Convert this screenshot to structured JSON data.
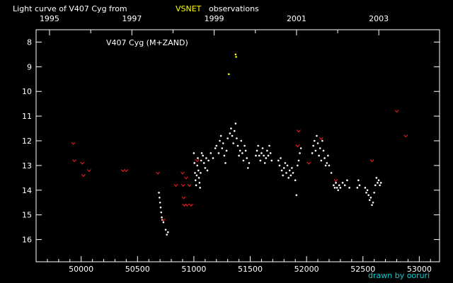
{
  "chart_data": {
    "type": "scatter",
    "title_prefix": "Light curve of V407 Cyg from",
    "title_highlight": "VSNET",
    "title_suffix": "observations",
    "annotation": "V407 Cyg (M+ZAND)",
    "credit": "drawn by ooruri",
    "xlim": [
      49600,
      53180
    ],
    "ylim": [
      16.9,
      7.5
    ],
    "y_inverted": true,
    "grid": false,
    "x_ticks": [
      50000,
      50500,
      51000,
      51500,
      52000,
      52500,
      53000
    ],
    "x_tick_labels": [
      "50000",
      "50500",
      "51000",
      "51500",
      "52000",
      "52500",
      "53000"
    ],
    "y_ticks": [
      8,
      9,
      10,
      11,
      12,
      13,
      14,
      15,
      16
    ],
    "y_tick_labels": [
      "8",
      "9",
      "10",
      "11",
      "12",
      "13",
      "14",
      "15",
      "16"
    ],
    "top_axis_years": [
      {
        "label": "1995",
        "jd": 49719
      },
      {
        "label": "1997",
        "jd": 50450
      },
      {
        "label": "1999",
        "jd": 51180
      },
      {
        "label": "2001",
        "jd": 51911
      },
      {
        "label": "2003",
        "jd": 52641
      }
    ],
    "colors": {
      "background": "#000000",
      "axes": "#ffffff",
      "title": "#ffffff",
      "highlight": "#ffff00",
      "credit": "#00d0d0",
      "observation": "#ffffff",
      "upper_limit": "#ff2020",
      "peak": "#ffff00"
    },
    "series": [
      {
        "marker": "dot",
        "color": "#ffffff",
        "points": [
          [
            50690,
            14.1
          ],
          [
            50695,
            14.3
          ],
          [
            50700,
            14.5
          ],
          [
            50705,
            14.7
          ],
          [
            50710,
            14.9
          ],
          [
            50715,
            15.1
          ],
          [
            50720,
            15.2
          ],
          [
            50730,
            15.3
          ],
          [
            50750,
            15.6
          ],
          [
            50760,
            15.8
          ],
          [
            50770,
            15.7
          ],
          [
            51000,
            12.5
          ],
          [
            51005,
            12.9
          ],
          [
            51010,
            13.3
          ],
          [
            51015,
            13.6
          ],
          [
            51020,
            13.8
          ],
          [
            51025,
            13.4
          ],
          [
            51030,
            13.0
          ],
          [
            51035,
            12.7
          ],
          [
            51040,
            13.2
          ],
          [
            51045,
            13.5
          ],
          [
            51050,
            13.7
          ],
          [
            51055,
            13.9
          ],
          [
            51060,
            13.3
          ],
          [
            51065,
            12.8
          ],
          [
            51070,
            12.5
          ],
          [
            51080,
            12.6
          ],
          [
            51090,
            12.9
          ],
          [
            51100,
            13.1
          ],
          [
            51110,
            12.7
          ],
          [
            51120,
            13.2
          ],
          [
            51130,
            12.8
          ],
          [
            51150,
            12.5
          ],
          [
            51170,
            12.7
          ],
          [
            51190,
            12.3
          ],
          [
            51200,
            12.2
          ],
          [
            51220,
            12.5
          ],
          [
            51230,
            12.0
          ],
          [
            51240,
            11.8
          ],
          [
            51250,
            12.3
          ],
          [
            51260,
            12.1
          ],
          [
            51270,
            12.6
          ],
          [
            51280,
            12.9
          ],
          [
            51290,
            12.4
          ],
          [
            51300,
            11.9
          ],
          [
            51320,
            11.7
          ],
          [
            51330,
            11.5
          ],
          [
            51340,
            11.8
          ],
          [
            51350,
            12.1
          ],
          [
            51360,
            11.6
          ],
          [
            51370,
            11.3
          ],
          [
            51380,
            11.9
          ],
          [
            51390,
            12.2
          ],
          [
            51400,
            12.6
          ],
          [
            51410,
            12.4
          ],
          [
            51420,
            12.0
          ],
          [
            51430,
            12.5
          ],
          [
            51440,
            12.8
          ],
          [
            51450,
            12.2
          ],
          [
            51460,
            12.4
          ],
          [
            51470,
            12.7
          ],
          [
            51480,
            13.1
          ],
          [
            51490,
            12.9
          ],
          [
            51550,
            12.6
          ],
          [
            51560,
            12.4
          ],
          [
            51570,
            12.2
          ],
          [
            51580,
            12.6
          ],
          [
            51590,
            12.8
          ],
          [
            51600,
            12.5
          ],
          [
            51610,
            12.3
          ],
          [
            51620,
            12.6
          ],
          [
            51630,
            12.9
          ],
          [
            51640,
            12.7
          ],
          [
            51650,
            12.4
          ],
          [
            51660,
            12.6
          ],
          [
            51670,
            12.2
          ],
          [
            51680,
            12.5
          ],
          [
            51690,
            12.8
          ],
          [
            51750,
            12.8
          ],
          [
            51760,
            13.0
          ],
          [
            51770,
            12.7
          ],
          [
            51780,
            13.2
          ],
          [
            51790,
            13.4
          ],
          [
            51800,
            13.1
          ],
          [
            51810,
            12.9
          ],
          [
            51820,
            13.3
          ],
          [
            51830,
            13.0
          ],
          [
            51840,
            13.5
          ],
          [
            51850,
            13.2
          ],
          [
            51860,
            13.4
          ],
          [
            51870,
            13.1
          ],
          [
            51880,
            13.3
          ],
          [
            51900,
            13.6
          ],
          [
            51910,
            14.2
          ],
          [
            51920,
            13.0
          ],
          [
            51930,
            12.8
          ],
          [
            51940,
            12.5
          ],
          [
            51950,
            12.3
          ],
          [
            52050,
            12.5
          ],
          [
            52060,
            12.2
          ],
          [
            52070,
            12.0
          ],
          [
            52080,
            12.4
          ],
          [
            52090,
            11.8
          ],
          [
            52100,
            12.1
          ],
          [
            52110,
            12.6
          ],
          [
            52120,
            12.3
          ],
          [
            52130,
            12.8
          ],
          [
            52140,
            12.0
          ],
          [
            52150,
            12.4
          ],
          [
            52160,
            12.7
          ],
          [
            52170,
            13.0
          ],
          [
            52180,
            12.9
          ],
          [
            52190,
            12.6
          ],
          [
            52200,
            13.0
          ],
          [
            52220,
            13.3
          ],
          [
            52240,
            13.8
          ],
          [
            52250,
            13.9
          ],
          [
            52260,
            13.7
          ],
          [
            52270,
            13.9
          ],
          [
            52280,
            14.0
          ],
          [
            52290,
            13.8
          ],
          [
            52300,
            13.9
          ],
          [
            52320,
            13.7
          ],
          [
            52340,
            13.8
          ],
          [
            52360,
            13.6
          ],
          [
            52380,
            13.9
          ],
          [
            52450,
            13.9
          ],
          [
            52460,
            13.6
          ],
          [
            52470,
            13.8
          ],
          [
            52520,
            13.9
          ],
          [
            52530,
            14.1
          ],
          [
            52540,
            14.0
          ],
          [
            52550,
            14.2
          ],
          [
            52560,
            14.4
          ],
          [
            52570,
            14.3
          ],
          [
            52580,
            14.6
          ],
          [
            52590,
            14.5
          ],
          [
            52600,
            14.1
          ],
          [
            52610,
            13.8
          ],
          [
            52620,
            13.5
          ],
          [
            52630,
            13.7
          ],
          [
            52640,
            13.6
          ],
          [
            52650,
            13.8
          ],
          [
            52660,
            13.7
          ]
        ]
      },
      {
        "marker": "dot",
        "color": "#ffff00",
        "points": [
          [
            51310,
            9.3
          ],
          [
            51370,
            8.5
          ],
          [
            51375,
            8.6
          ]
        ]
      },
      {
        "marker": "chevron",
        "color": "#ff2020",
        "points": [
          [
            49930,
            12.1
          ],
          [
            49940,
            12.8
          ],
          [
            50010,
            12.9
          ],
          [
            50020,
            13.4
          ],
          [
            50070,
            13.2
          ],
          [
            50370,
            13.2
          ],
          [
            50400,
            13.2
          ],
          [
            50680,
            13.3
          ],
          [
            50730,
            15.2
          ],
          [
            50840,
            13.8
          ],
          [
            50900,
            13.3
          ],
          [
            50905,
            13.8
          ],
          [
            50910,
            14.3
          ],
          [
            50915,
            14.6
          ],
          [
            50930,
            13.5
          ],
          [
            50940,
            14.6
          ],
          [
            50960,
            13.8
          ],
          [
            50975,
            14.6
          ],
          [
            51030,
            12.8
          ],
          [
            51920,
            12.2
          ],
          [
            51930,
            11.6
          ],
          [
            52020,
            12.9
          ],
          [
            52130,
            11.9
          ],
          [
            52260,
            13.6
          ],
          [
            52580,
            12.8
          ],
          [
            52800,
            10.8
          ],
          [
            52880,
            11.8
          ]
        ]
      }
    ]
  }
}
